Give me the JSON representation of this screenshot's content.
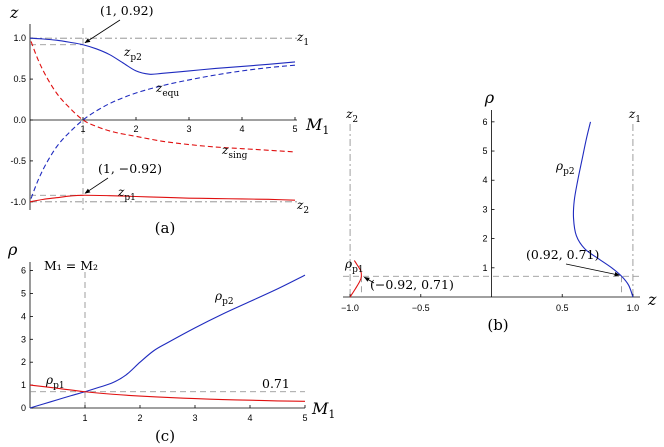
{
  "colors": {
    "blue": "#1f2bbf",
    "red": "#e01010",
    "guide": "#888888"
  },
  "chart_data": [
    {
      "type": "line",
      "panel": "(a)",
      "xlabel": "M",
      "xlabel_sub": "1",
      "ylabel": "z",
      "xlim": [
        0,
        5
      ],
      "ylim": [
        -1.1,
        1.1
      ],
      "xticks": [
        "1",
        "2",
        "3",
        "4",
        "5"
      ],
      "yticks": [
        "1.0",
        "0.5",
        "0.0",
        "-0.5",
        "-1.0"
      ],
      "series": [
        {
          "name": "z",
          "sub": "p2",
          "color": "blue",
          "style": "solid",
          "x": [
            0,
            0.25,
            0.5,
            0.75,
            1,
            1.25,
            1.5,
            1.75,
            2,
            2.25,
            2.5,
            3,
            3.5,
            4,
            4.5,
            5
          ],
          "y": [
            1.0,
            0.99,
            0.975,
            0.95,
            0.92,
            0.87,
            0.8,
            0.7,
            0.6,
            0.56,
            0.57,
            0.6,
            0.63,
            0.655,
            0.68,
            0.71
          ]
        },
        {
          "name": "z",
          "sub": "equ",
          "color": "blue",
          "style": "dashed",
          "x": [
            0.02,
            0.15,
            0.3,
            0.5,
            0.7,
            1,
            1.3,
            1.6,
            2,
            2.5,
            3,
            3.5,
            4,
            4.5,
            5
          ],
          "y": [
            -0.96,
            -0.74,
            -0.54,
            -0.33,
            -0.18,
            0.0,
            0.13,
            0.23,
            0.33,
            0.42,
            0.49,
            0.55,
            0.6,
            0.64,
            0.67
          ]
        },
        {
          "name": "z",
          "sub": "sing",
          "color": "red",
          "style": "dashed",
          "x": [
            0.02,
            0.15,
            0.3,
            0.5,
            0.7,
            1,
            1.3,
            1.6,
            2,
            2.5,
            3,
            3.5,
            4,
            4.5,
            5
          ],
          "y": [
            0.96,
            0.74,
            0.54,
            0.33,
            0.18,
            0.0,
            -0.09,
            -0.15,
            -0.2,
            -0.26,
            -0.3,
            -0.33,
            -0.35,
            -0.37,
            -0.39
          ]
        },
        {
          "name": "z",
          "sub": "p1",
          "color": "red",
          "style": "solid",
          "x": [
            0,
            0.25,
            0.5,
            0.75,
            1,
            1.5,
            2,
            2.5,
            3,
            3.5,
            4,
            4.5,
            5
          ],
          "y": [
            -1.0,
            -0.97,
            -0.95,
            -0.93,
            -0.92,
            -0.925,
            -0.935,
            -0.945,
            -0.955,
            -0.96,
            -0.965,
            -0.97,
            -0.98
          ]
        }
      ],
      "guides": {
        "z1": "z",
        "z1_sub": "1",
        "z2": "z",
        "z2_sub": "2"
      },
      "annotations": [
        "(1, 0.92)",
        "(1, −0.92)"
      ]
    },
    {
      "type": "line",
      "panel": "(b)",
      "xlabel": "z",
      "ylabel": "ρ",
      "xlim": [
        -1.05,
        1.05
      ],
      "ylim": [
        0,
        6.2
      ],
      "xticks": [
        "−1.0",
        "−0.5",
        "0.5",
        "1.0"
      ],
      "yticks": [
        "1",
        "2",
        "3",
        "4",
        "5",
        "6"
      ],
      "series": [
        {
          "name": "ρ",
          "sub": "p2",
          "color": "blue",
          "style": "solid",
          "x": [
            1.0,
            0.97,
            0.92,
            0.85,
            0.76,
            0.66,
            0.6,
            0.58,
            0.585,
            0.61,
            0.64,
            0.67,
            0.7
          ],
          "y": [
            0.0,
            0.4,
            0.71,
            1.0,
            1.3,
            1.65,
            2.1,
            2.7,
            3.3,
            4.0,
            4.7,
            5.4,
            6.0
          ]
        },
        {
          "name": "ρ",
          "sub": "p1",
          "color": "red",
          "style": "solid",
          "x": [
            -1.0,
            -0.96,
            -0.93,
            -0.92,
            -0.925,
            -0.95,
            -0.97
          ],
          "y": [
            0.0,
            0.3,
            0.55,
            0.71,
            0.9,
            1.1,
            1.25
          ]
        }
      ],
      "guides": {
        "z1": "z",
        "z1_sub": "1",
        "z2": "z",
        "z2_sub": "2"
      },
      "annotations": [
        "(−0.92, 0.71)",
        "(0.92, 0.71)"
      ]
    },
    {
      "type": "line",
      "panel": "(c)",
      "xlabel": "M",
      "xlabel_sub": "1",
      "ylabel": "ρ",
      "xlim": [
        0,
        5
      ],
      "ylim": [
        0,
        6.2
      ],
      "xticks": [
        "1",
        "2",
        "3",
        "4",
        "5"
      ],
      "yticks": [
        "0",
        "1",
        "2",
        "3",
        "4",
        "5",
        "6"
      ],
      "series": [
        {
          "name": "ρ",
          "sub": "p2",
          "color": "blue",
          "style": "solid",
          "x": [
            0,
            0.25,
            0.5,
            0.75,
            1,
            1.25,
            1.5,
            1.75,
            2,
            2.25,
            2.5,
            3,
            3.5,
            4,
            4.5,
            5
          ],
          "y": [
            0.0,
            0.18,
            0.36,
            0.54,
            0.71,
            0.9,
            1.1,
            1.45,
            2.0,
            2.5,
            2.85,
            3.5,
            4.1,
            4.65,
            5.2,
            5.8
          ]
        },
        {
          "name": "ρ",
          "sub": "p1",
          "color": "red",
          "style": "solid",
          "x": [
            0,
            0.5,
            1,
            1.5,
            2,
            2.5,
            3,
            3.5,
            4,
            4.5,
            5
          ],
          "y": [
            1.0,
            0.86,
            0.71,
            0.6,
            0.52,
            0.46,
            0.41,
            0.37,
            0.34,
            0.31,
            0.29
          ]
        }
      ],
      "annotations": [
        "M₁ = M₂",
        "0.71"
      ]
    }
  ]
}
